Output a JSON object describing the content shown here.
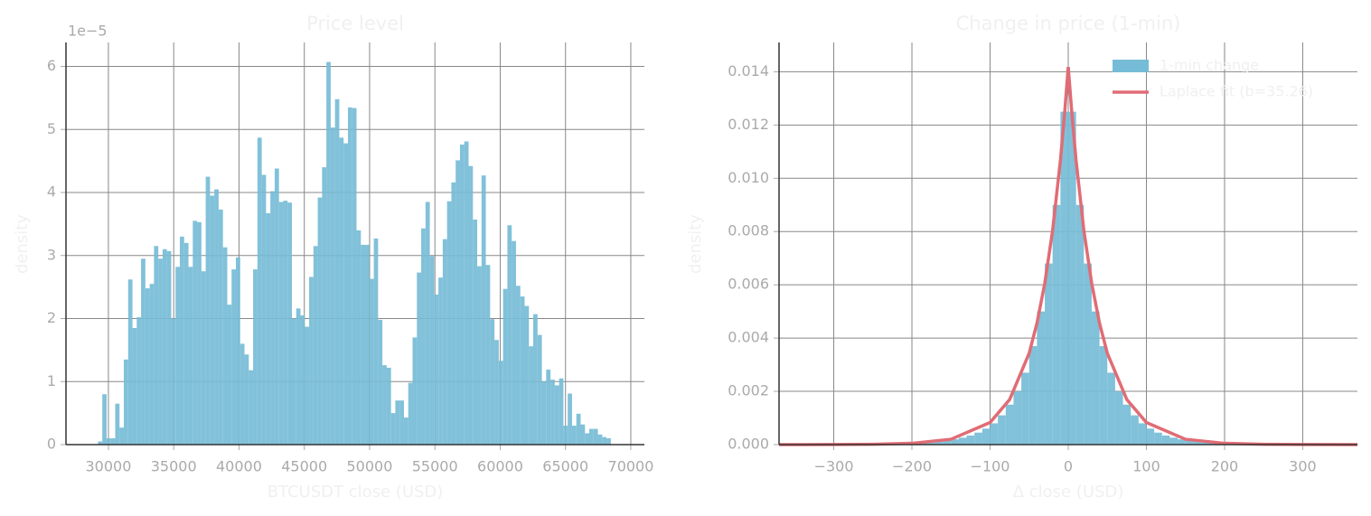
{
  "chart_data": [
    {
      "type": "histogram",
      "title": "Price level",
      "xlabel": "BTCUSDT close (USD)",
      "ylabel": "density",
      "y_offset_label": "1e−5",
      "color": "#76bcd6",
      "grid": true,
      "bins": [
        29200,
        29530,
        29860,
        30190,
        30520,
        30850,
        31180,
        31510,
        31840,
        32170,
        32500,
        32830,
        33160,
        33490,
        33820,
        34150,
        34480,
        34810,
        35140,
        35470,
        35800,
        36130,
        36460,
        36790,
        37120,
        37450,
        37780,
        38110,
        38440,
        38770,
        39100,
        39430,
        39760,
        40090,
        40420,
        40750,
        41080,
        41410,
        41740,
        42070,
        42400,
        42730,
        43060,
        43390,
        43720,
        44050,
        44380,
        44710,
        45040,
        45370,
        45700,
        46030,
        46360,
        46690,
        47020,
        47350,
        47680,
        48010,
        48340,
        48670,
        49000,
        49330,
        49660,
        49990,
        50320,
        50650,
        50980,
        51310,
        51640,
        51970,
        52300,
        52630,
        52960,
        53290,
        53620,
        53950,
        54280,
        54610,
        54940,
        55270,
        55600,
        55930,
        56260,
        56590,
        56920,
        57250,
        57580,
        57910,
        58240,
        58570,
        58900,
        59230,
        59560,
        59890,
        60220,
        60550,
        60880,
        61210,
        61540,
        61870,
        62200,
        62530,
        62860,
        63190,
        63520,
        63850,
        64180,
        64510,
        64840,
        65170,
        65500,
        65830,
        66160,
        66490,
        66820,
        67150,
        67480,
        67810,
        68140,
        68470
      ],
      "values": [
        0.05,
        0.8,
        0.1,
        0.1,
        0.65,
        0.27,
        1.35,
        2.62,
        1.85,
        2.02,
        2.95,
        2.48,
        2.55,
        3.15,
        2.95,
        3.1,
        3.07,
        2.0,
        2.82,
        3.3,
        3.2,
        2.82,
        3.55,
        3.53,
        2.75,
        4.25,
        3.95,
        4.05,
        3.73,
        3.13,
        2.22,
        2.78,
        2.97,
        1.6,
        1.43,
        1.18,
        2.78,
        4.87,
        4.28,
        3.67,
        4.02,
        4.38,
        3.85,
        3.87,
        3.84,
        2.0,
        2.16,
        2.05,
        1.87,
        2.66,
        3.15,
        3.92,
        4.4,
        6.07,
        5.03,
        5.48,
        4.87,
        4.78,
        5.35,
        5.34,
        3.4,
        3.17,
        3.17,
        2.63,
        3.27,
        1.98,
        1.26,
        1.22,
        0.5,
        0.7,
        0.7,
        0.43,
        0.98,
        1.7,
        2.73,
        3.43,
        3.85,
        2.99,
        2.38,
        2.65,
        3.26,
        3.86,
        4.16,
        4.51,
        4.76,
        4.81,
        4.42,
        3.57,
        2.83,
        4.27,
        2.85,
        1.99,
        1.66,
        1.33,
        2.47,
        3.48,
        3.23,
        2.52,
        2.35,
        2.2,
        1.56,
        2.07,
        1.74,
        1.0,
        1.19,
        1.03,
        0.94,
        1.05,
        0.3,
        0.81,
        0.3,
        0.49,
        0.32,
        0.18,
        0.25,
        0.25,
        0.16,
        0.12,
        0.1
      ],
      "xlim": [
        26750,
        71040
      ],
      "xticks": [
        30000,
        35000,
        40000,
        45000,
        50000,
        55000,
        60000,
        65000,
        70000
      ],
      "ylim": [
        0,
        6.38
      ],
      "yticks": [
        0,
        1,
        2,
        3,
        4,
        5,
        6
      ]
    },
    {
      "type": "histogram",
      "title": "Change in price (1-min)",
      "xlabel": "Δ close (USD)",
      "ylabel": "density",
      "grid": true,
      "legend": "upper right",
      "series": [
        {
          "name": "1-min change",
          "type": "histogram",
          "color": "#76bcd6",
          "bins": [
            -370,
            -360,
            -350,
            -340,
            -330,
            -320,
            -310,
            -300,
            -290,
            -280,
            -270,
            -260,
            -250,
            -240,
            -230,
            -220,
            -210,
            -200,
            -190,
            -180,
            -170,
            -160,
            -150,
            -140,
            -130,
            -120,
            -110,
            -100,
            -90,
            -80,
            -70,
            -60,
            -50,
            -40,
            -30,
            -20,
            -10,
            0,
            10,
            20,
            30,
            40,
            50,
            60,
            70,
            80,
            90,
            100,
            110,
            120,
            130,
            140,
            150,
            160,
            170,
            180,
            190,
            200,
            210,
            220,
            230,
            240,
            250,
            260,
            270,
            280,
            290,
            300,
            310,
            320,
            330,
            340,
            350,
            360,
            370
          ],
          "values": [
            0,
            0,
            0,
            0,
            0,
            0,
            1e-05,
            1e-05,
            1e-05,
            1e-05,
            1e-05,
            1e-05,
            1e-05,
            2e-05,
            2e-05,
            3e-05,
            4e-05,
            5e-05,
            6e-05,
            8e-05,
            0.00011,
            0.00015,
            0.0002,
            0.00026,
            0.00034,
            0.00045,
            0.0006,
            0.0008,
            0.0011,
            0.0015,
            0.002,
            0.0027,
            0.0037,
            0.005,
            0.0068,
            0.009,
            0.0125,
            0.0125,
            0.009,
            0.0068,
            0.005,
            0.0037,
            0.0027,
            0.002,
            0.0015,
            0.0011,
            0.0008,
            0.0006,
            0.00045,
            0.00034,
            0.00026,
            0.0002,
            0.00015,
            0.00011,
            8e-05,
            6e-05,
            5e-05,
            4e-05,
            3e-05,
            2e-05,
            2e-05,
            1e-05,
            1e-05,
            1e-05,
            1e-05,
            1e-05,
            1e-05,
            1e-05,
            0,
            0,
            0,
            0,
            0,
            0
          ]
        },
        {
          "name": "Laplace fit (b=35.26)",
          "type": "line",
          "color": "#e06c75",
          "x": [
            -370,
            -300,
            -250,
            -200,
            -150,
            -100,
            -75,
            -50,
            -40,
            -30,
            -20,
            -10,
            -5,
            0,
            5,
            10,
            20,
            30,
            40,
            50,
            75,
            100,
            150,
            200,
            250,
            300,
            370
          ],
          "values": [
            4e-07,
            2.9e-06,
            1.18e-05,
            4.88e-05,
            0.000201,
            0.00083,
            0.00169,
            0.00343,
            0.00456,
            0.00606,
            0.00804,
            0.01068,
            0.01231,
            0.01418,
            0.01231,
            0.01068,
            0.00804,
            0.00606,
            0.00456,
            0.00343,
            0.00169,
            0.00083,
            0.000201,
            4.88e-05,
            1.18e-05,
            2.9e-06,
            4e-07
          ]
        }
      ],
      "xlim": [
        -370,
        370
      ],
      "xticks": [
        {
          "value": -300,
          "label": "−300"
        },
        {
          "value": -200,
          "label": "−200"
        },
        {
          "value": -100,
          "label": "−100"
        },
        0,
        100,
        200,
        300
      ],
      "ylim": [
        0,
        0.0151
      ],
      "yticks": [
        {
          "value": 0,
          "label": "0.000"
        },
        {
          "value": 0.002,
          "label": "0.002"
        },
        {
          "value": 0.004,
          "label": "0.004"
        },
        {
          "value": 0.006,
          "label": "0.006"
        },
        {
          "value": 0.008,
          "label": "0.008"
        },
        {
          "value": 0.01,
          "label": "0.010"
        },
        {
          "value": 0.012,
          "label": "0.012"
        },
        {
          "value": 0.014,
          "label": "0.014"
        }
      ]
    }
  ]
}
